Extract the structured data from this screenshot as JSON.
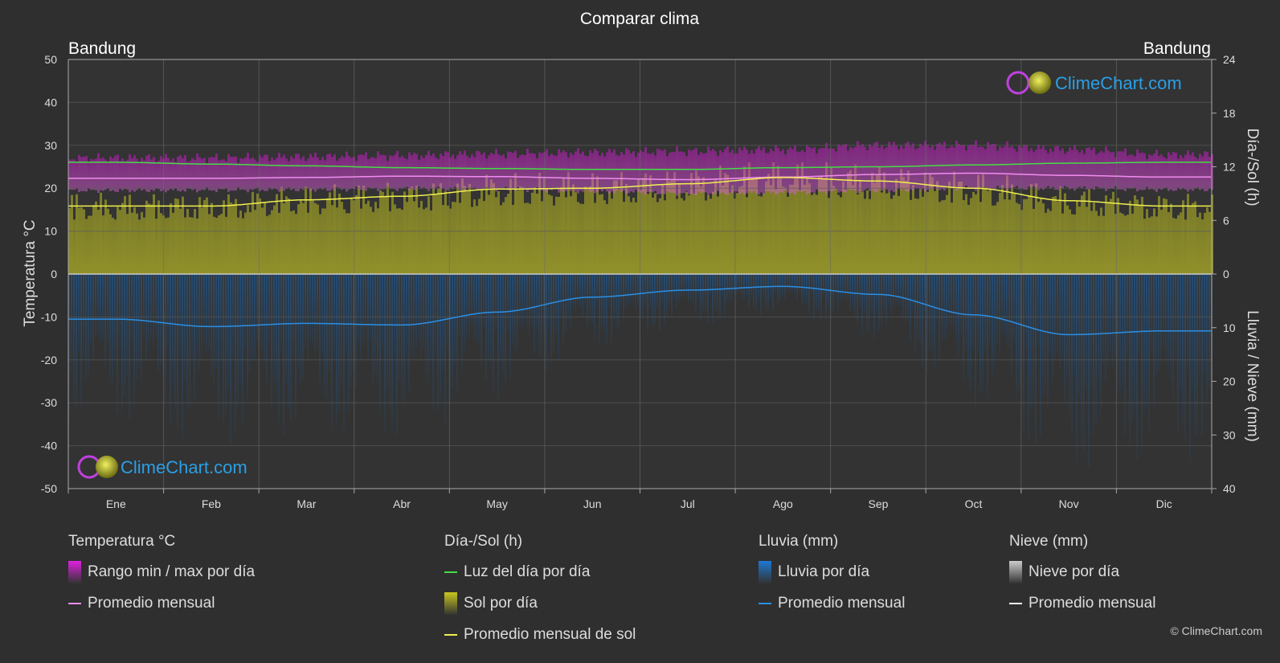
{
  "chart_data": {
    "type": "area",
    "title": "Comparar clima",
    "location_left": "Bandung",
    "location_right": "Bandung",
    "categories": [
      "Ene",
      "Feb",
      "Mar",
      "Abr",
      "May",
      "Jun",
      "Jul",
      "Ago",
      "Sep",
      "Oct",
      "Nov",
      "Dic"
    ],
    "ylabel_left": "Temperatura °C",
    "ylabel_right_top": "Día-/Sol (h)",
    "ylabel_right_bottom": "Lluvia / Nieve (mm)",
    "ylim_left": [
      -50,
      50
    ],
    "yticks_left": [
      "50",
      "40",
      "30",
      "20",
      "10",
      "0",
      "-10",
      "-20",
      "-30",
      "-40",
      "-50"
    ],
    "yticks_right_top": [
      "24",
      "18",
      "12",
      "6",
      "0"
    ],
    "yticks_right_bottom": [
      "10",
      "20",
      "30",
      "40"
    ],
    "series": [
      {
        "name": "Luz del día por día",
        "unit": "h",
        "values": [
          12.5,
          12.3,
          12.1,
          11.9,
          11.8,
          11.7,
          11.7,
          11.9,
          12.0,
          12.2,
          12.4,
          12.5
        ]
      },
      {
        "name": "Promedio mensual",
        "unit": "°C",
        "values": [
          22.3,
          22.3,
          22.5,
          22.8,
          22.7,
          22.3,
          22.0,
          22.6,
          23.2,
          23.5,
          23.0,
          22.6
        ]
      },
      {
        "name": "Promedio mensual de sol",
        "unit": "h",
        "values": [
          7.6,
          7.6,
          8.3,
          8.7,
          9.5,
          9.6,
          10.1,
          10.8,
          10.4,
          9.6,
          8.2,
          7.6
        ]
      },
      {
        "name": "Promedio mensual",
        "unit": "mm",
        "values": [
          8.4,
          9.8,
          9.2,
          9.5,
          7.1,
          4.3,
          3.0,
          2.3,
          3.8,
          7.6,
          11.3,
          10.6
        ]
      },
      {
        "name": "Rango min / max por día",
        "unit": "°C",
        "min": [
          19.5,
          19.6,
          19.7,
          19.9,
          19.8,
          19.3,
          18.8,
          19.0,
          19.5,
          20.0,
          20.0,
          19.7
        ],
        "max": [
          27.0,
          27.0,
          27.3,
          27.6,
          28.0,
          28.3,
          28.6,
          29.0,
          30.0,
          30.0,
          29.0,
          27.8
        ]
      }
    ],
    "legend": [
      {
        "title": "Temperatura °C",
        "items": [
          {
            "label": "Rango min / max por día",
            "swatch": "box",
            "color": "#e020e0"
          },
          {
            "label": "Promedio mensual",
            "swatch": "line",
            "color": "#f08cf0"
          }
        ]
      },
      {
        "title": "Día-/Sol (h)",
        "items": [
          {
            "label": "Luz del día por día",
            "swatch": "line",
            "color": "#44dd44"
          },
          {
            "label": "Sol por día",
            "swatch": "box",
            "color": "#c8c81e"
          },
          {
            "label": "Promedio mensual de sol",
            "swatch": "line",
            "color": "#f0f050"
          }
        ]
      },
      {
        "title": "Lluvia (mm)",
        "items": [
          {
            "label": "Lluvia por día",
            "swatch": "box",
            "color": "#1e78d2"
          },
          {
            "label": "Promedio mensual",
            "swatch": "line",
            "color": "#2a8fe6"
          }
        ]
      },
      {
        "title": "Nieve (mm)",
        "items": [
          {
            "label": "Nieve por día",
            "swatch": "box",
            "color": "#cccccc"
          },
          {
            "label": "Promedio mensual",
            "swatch": "line",
            "color": "#ffffff"
          }
        ]
      }
    ]
  },
  "brand": {
    "name": "ClimeChart.com",
    "copyright": "© ClimeChart.com"
  },
  "colors": {
    "background": "#2f2f2f",
    "grid": "#555555",
    "temp_range": "#d21ed2",
    "temp_avg": "#f08cf0",
    "daylight": "#44dd44",
    "sunshine_fill": "#9a9a24",
    "sunshine_avg": "#f0f050",
    "rain_fill": "#1e5a96",
    "rain_avg": "#2a8fe6",
    "brand_text": "#2a9fe6"
  }
}
